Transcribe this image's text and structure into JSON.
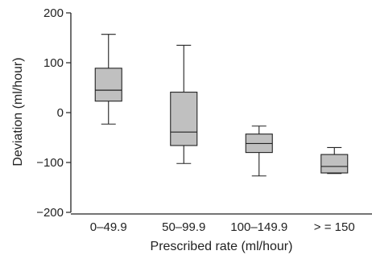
{
  "chart_data": {
    "type": "box",
    "xlabel": "Prescribed rate (ml/hour)",
    "ylabel": "Deviation (ml/hour)",
    "ylim": [
      -200,
      200
    ],
    "yticks": [
      200,
      100,
      0,
      -100,
      -200
    ],
    "ytick_labels": [
      "200",
      "100",
      "0",
      "−100",
      "−200"
    ],
    "box_color": "#c0c0c0",
    "categories": [
      "0–49.9",
      "50–99.9",
      "100–149.9",
      "> = 150"
    ],
    "boxes": [
      {
        "min": -23,
        "q1": 23,
        "median": 45,
        "q3": 89,
        "max": 157
      },
      {
        "min": -102,
        "q1": -66,
        "median": -39,
        "q3": 41,
        "max": 135
      },
      {
        "min": -127,
        "q1": -80,
        "median": -62,
        "q3": -43,
        "max": -27
      },
      {
        "min": -122,
        "q1": -121,
        "median": -108,
        "q3": -84,
        "max": -70
      }
    ]
  }
}
